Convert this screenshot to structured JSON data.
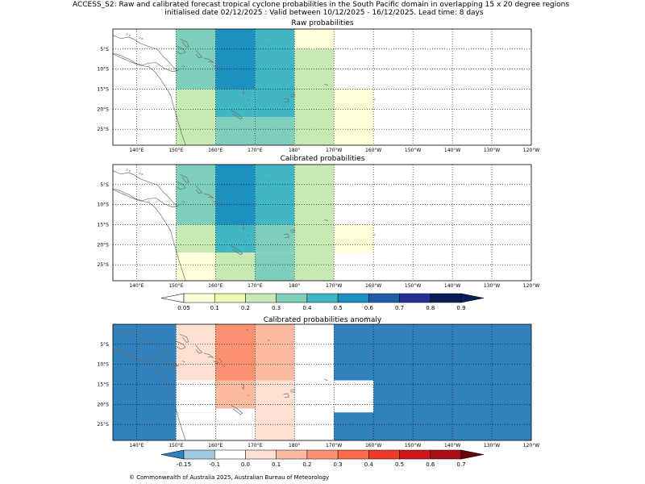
{
  "header": {
    "line1": "ACCESS_S2: Raw and calibrated forecast tropical cyclone probabilities in the South Pacific domain in overlapping 15 x 20 degree regions",
    "line2": "initialised date 02/12/2025 :  Valid between 10/12/2025 - 16/12/2025. Lead time: 8 days"
  },
  "footer": {
    "copyright": "© Commonwealth of Australia 2025, Australian Bureau of Meteorology"
  },
  "chart_data": [
    {
      "type": "heatmap",
      "title": "Raw probabilities",
      "x_ticks": [
        "140°E",
        "150°E",
        "160°E",
        "170°E",
        "180°",
        "170°W",
        "160°W",
        "150°W",
        "140°W",
        "130°W",
        "120°W"
      ],
      "y_ticks": [
        "5°S",
        "10°S",
        "15°S",
        "20°S",
        "25°S"
      ],
      "x_range_deg_east": [
        134,
        240
      ],
      "y_range_deg_south": [
        0,
        29
      ],
      "grid": "dotted",
      "cells": [
        {
          "lon": [
            150,
            160
          ],
          "lat": [
            0,
            15
          ],
          "value": 0.3
        },
        {
          "lon": [
            160,
            170
          ],
          "lat": [
            0,
            15
          ],
          "value": 0.5
        },
        {
          "lon": [
            170,
            180
          ],
          "lat": [
            0,
            15
          ],
          "value": 0.4
        },
        {
          "lon": [
            180,
            190
          ],
          "lat": [
            0,
            5
          ],
          "value": 0.05
        },
        {
          "lon": [
            180,
            190
          ],
          "lat": [
            5,
            15
          ],
          "value": 0.2
        },
        {
          "lon": [
            150,
            160
          ],
          "lat": [
            15,
            29
          ],
          "value": 0.2
        },
        {
          "lon": [
            160,
            170
          ],
          "lat": [
            15,
            22
          ],
          "value": 0.4
        },
        {
          "lon": [
            170,
            180
          ],
          "lat": [
            15,
            22
          ],
          "value": 0.4
        },
        {
          "lon": [
            160,
            170
          ],
          "lat": [
            22,
            29
          ],
          "value": 0.3
        },
        {
          "lon": [
            170,
            180
          ],
          "lat": [
            22,
            29
          ],
          "value": 0.3
        },
        {
          "lon": [
            180,
            190
          ],
          "lat": [
            15,
            29
          ],
          "value": 0.2
        },
        {
          "lon": [
            190,
            200
          ],
          "lat": [
            15,
            29
          ],
          "value": 0.05
        }
      ]
    },
    {
      "type": "heatmap",
      "title": "Calibrated probabilities",
      "x_ticks": [
        "140°E",
        "150°E",
        "160°E",
        "170°E",
        "180°",
        "170°W",
        "160°W",
        "150°W",
        "140°W",
        "130°W",
        "120°W"
      ],
      "y_ticks": [
        "5°S",
        "10°S",
        "15°S",
        "20°S",
        "25°S"
      ],
      "x_range_deg_east": [
        134,
        240
      ],
      "y_range_deg_south": [
        0,
        29
      ],
      "grid": "dotted",
      "cells": [
        {
          "lon": [
            150,
            160
          ],
          "lat": [
            0,
            15
          ],
          "value": 0.3
        },
        {
          "lon": [
            160,
            170
          ],
          "lat": [
            0,
            15
          ],
          "value": 0.5
        },
        {
          "lon": [
            170,
            180
          ],
          "lat": [
            0,
            15
          ],
          "value": 0.4
        },
        {
          "lon": [
            180,
            190
          ],
          "lat": [
            0,
            15
          ],
          "value": 0.2
        },
        {
          "lon": [
            150,
            160
          ],
          "lat": [
            15,
            22
          ],
          "value": 0.2
        },
        {
          "lon": [
            160,
            170
          ],
          "lat": [
            15,
            22
          ],
          "value": 0.4
        },
        {
          "lon": [
            170,
            180
          ],
          "lat": [
            15,
            22
          ],
          "value": 0.3
        },
        {
          "lon": [
            180,
            190
          ],
          "lat": [
            15,
            22
          ],
          "value": 0.2
        },
        {
          "lon": [
            190,
            200
          ],
          "lat": [
            15,
            22
          ],
          "value": 0.05
        },
        {
          "lon": [
            150,
            160
          ],
          "lat": [
            22,
            29
          ],
          "value": 0.05
        },
        {
          "lon": [
            160,
            170
          ],
          "lat": [
            22,
            29
          ],
          "value": 0.2
        },
        {
          "lon": [
            170,
            180
          ],
          "lat": [
            22,
            29
          ],
          "value": 0.3
        },
        {
          "lon": [
            180,
            190
          ],
          "lat": [
            22,
            29
          ],
          "value": 0.2
        }
      ]
    },
    {
      "type": "colorbar",
      "name": "probability scale",
      "boundaries": [
        0.05,
        0.1,
        0.2,
        0.3,
        0.4,
        0.5,
        0.6,
        0.7,
        0.8,
        0.9
      ],
      "tick_labels": [
        "0.05",
        "0.1",
        "0.2",
        "0.3",
        "0.4",
        "0.5",
        "0.6",
        "0.7",
        "0.8",
        "0.9"
      ],
      "colors": [
        "#ffffd9",
        "#edf8b1",
        "#c7e9b4",
        "#7fcdbb",
        "#41b6c4",
        "#1d91c0",
        "#225ea8",
        "#253494",
        "#081d58"
      ],
      "under_color": "#ffffff",
      "over_color": "#081d58"
    },
    {
      "type": "heatmap",
      "title": "Calibrated probabilities anomaly",
      "x_ticks": [
        "140°E",
        "150°E",
        "160°E",
        "170°E",
        "180°",
        "170°W",
        "160°W",
        "150°W",
        "140°W",
        "130°W",
        "120°W"
      ],
      "y_ticks": [
        "5°S",
        "10°S",
        "15°S",
        "20°S",
        "25°S"
      ],
      "x_range_deg_east": [
        134,
        240
      ],
      "y_range_deg_south": [
        0,
        29
      ],
      "grid": "dotted",
      "background_value": -0.2,
      "cells": [
        {
          "lon": [
            134,
            150
          ],
          "lat": [
            0,
            29
          ],
          "value": -0.2
        },
        {
          "lon": [
            150,
            160
          ],
          "lat": [
            0,
            14
          ],
          "value": 0.05
        },
        {
          "lon": [
            160,
            170
          ],
          "lat": [
            0,
            14
          ],
          "value": 0.25
        },
        {
          "lon": [
            170,
            180
          ],
          "lat": [
            0,
            14
          ],
          "value": 0.15
        },
        {
          "lon": [
            180,
            190
          ],
          "lat": [
            0,
            29
          ],
          "value": -0.05
        },
        {
          "lon": [
            150,
            160
          ],
          "lat": [
            14,
            22
          ],
          "value": -0.05
        },
        {
          "lon": [
            160,
            170
          ],
          "lat": [
            14,
            21
          ],
          "value": 0.15
        },
        {
          "lon": [
            170,
            180
          ],
          "lat": [
            14,
            29
          ],
          "value": 0.05
        },
        {
          "lon": [
            150,
            160
          ],
          "lat": [
            22,
            29
          ],
          "value": -0.1
        },
        {
          "lon": [
            160,
            170
          ],
          "lat": [
            21,
            29
          ],
          "value": -0.05
        },
        {
          "lon": [
            190,
            240
          ],
          "lat": [
            0,
            29
          ],
          "value": -0.2
        },
        {
          "lon": [
            190,
            200
          ],
          "lat": [
            14,
            22
          ],
          "value": -0.1
        }
      ]
    },
    {
      "type": "colorbar",
      "name": "anomaly scale",
      "boundaries": [
        -0.15,
        -0.1,
        0.0,
        0.1,
        0.2,
        0.3,
        0.4,
        0.5,
        0.6,
        0.7
      ],
      "tick_labels": [
        "-0.15",
        "-0.1",
        "0.0",
        "0.1",
        "0.2",
        "0.3",
        "0.4",
        "0.5",
        "0.6",
        "0.7"
      ],
      "colors": [
        "#9ecae1",
        "#ffffff",
        "#fee0d2",
        "#fcbba1",
        "#fc9272",
        "#fb6a4a",
        "#ef3b2c",
        "#cb181d",
        "#a50f15"
      ],
      "under_color": "#3182bd",
      "over_color": "#67000d"
    }
  ]
}
